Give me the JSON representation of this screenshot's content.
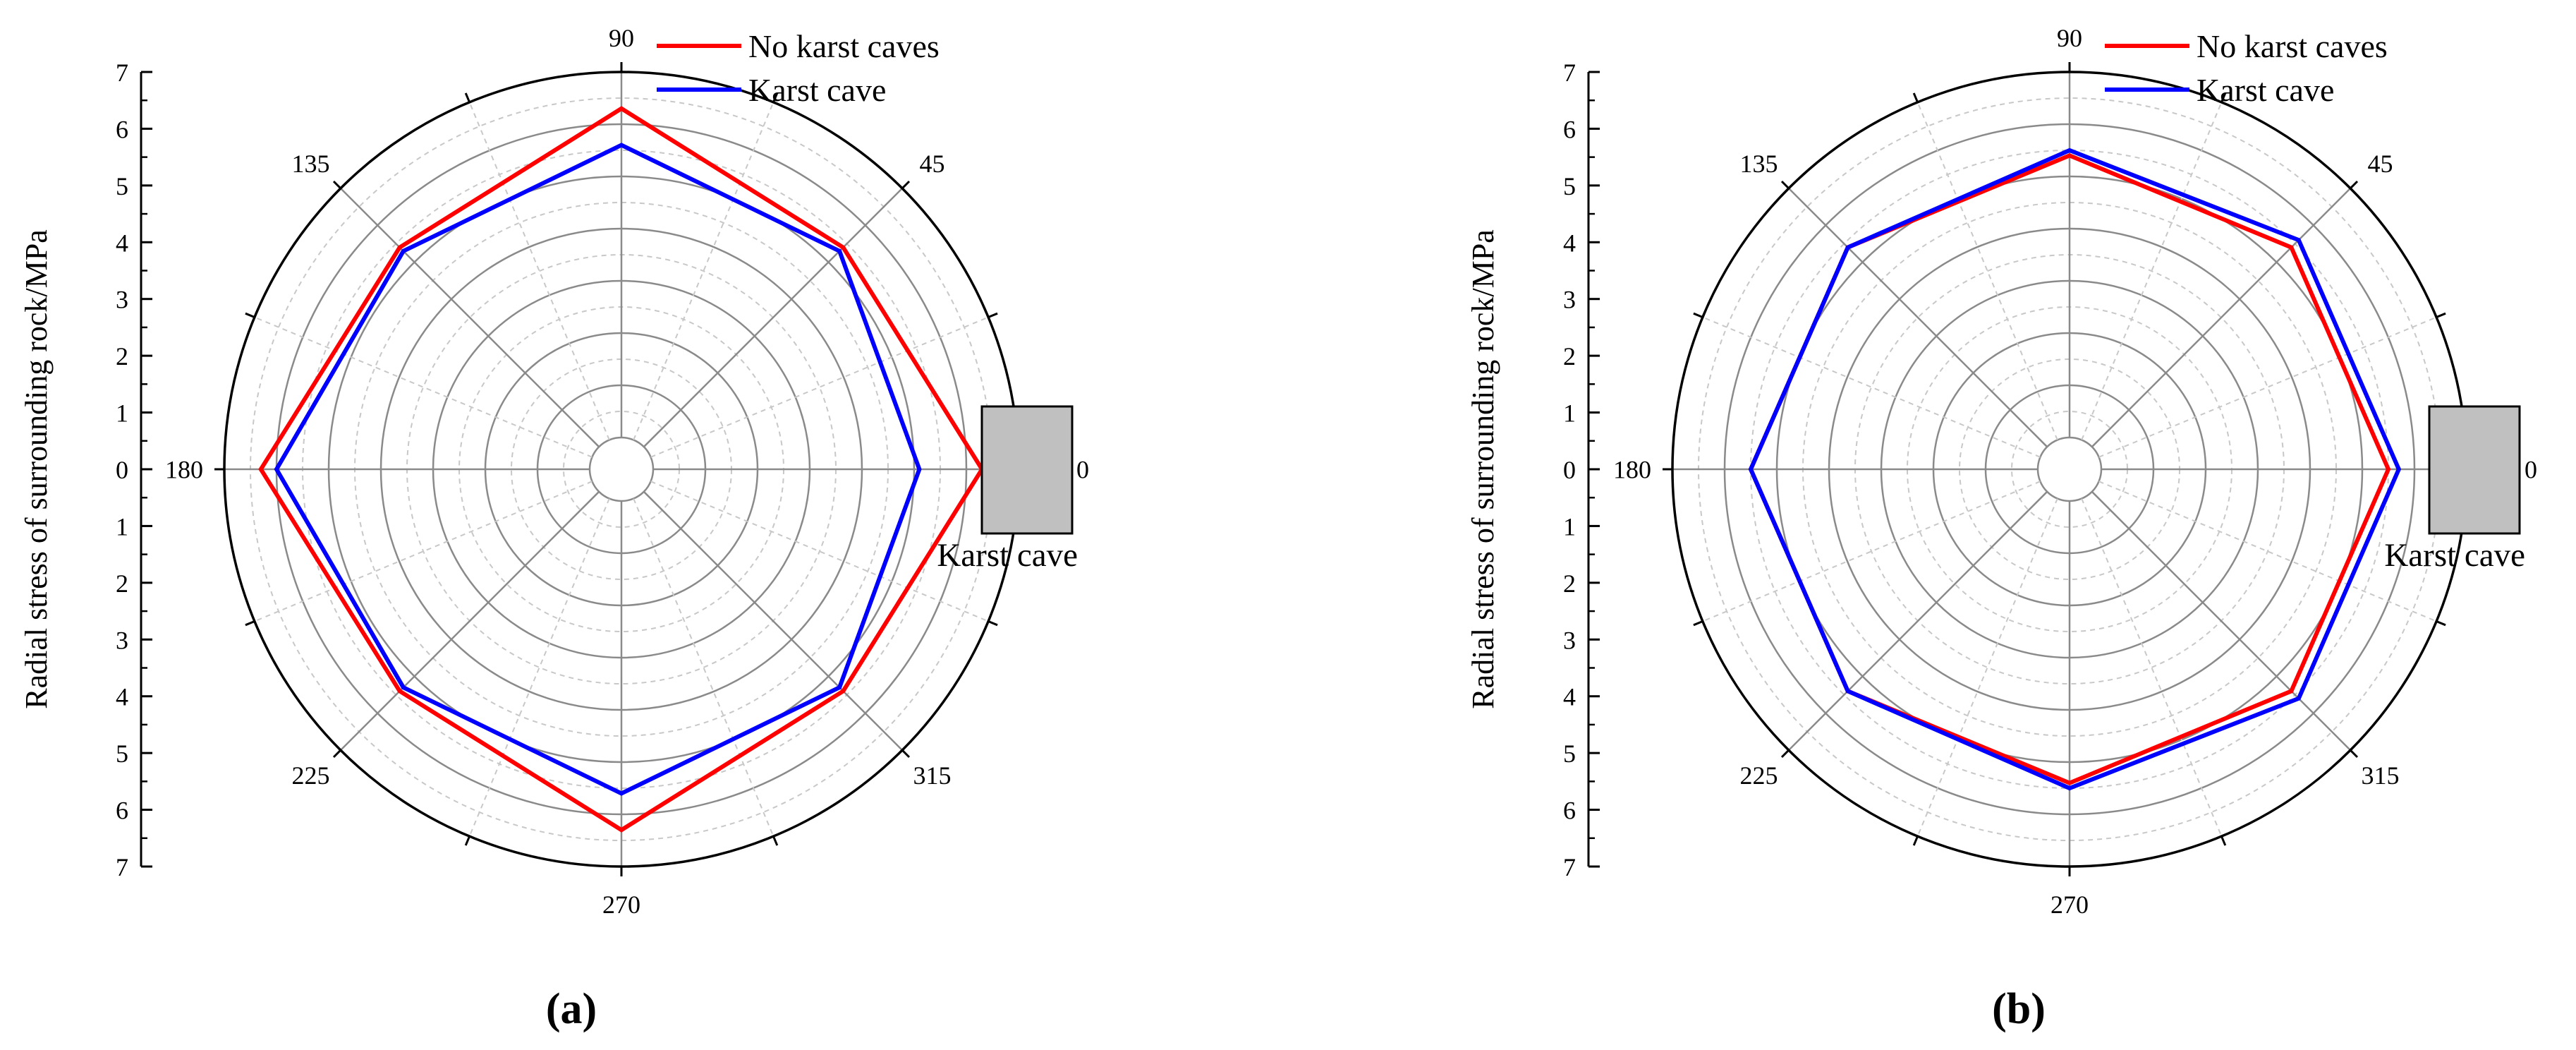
{
  "figure": {
    "panel_labels": [
      "(a)",
      "(b)"
    ]
  },
  "colors": {
    "no_karst": "#ff0000",
    "karst": "#0000ff",
    "grid_major": "#8a8a8a",
    "grid_minor": "#c8c8c8",
    "cave_fill": "#c0c0c0"
  },
  "chart_data": [
    {
      "type": "radar",
      "panel": "(a)",
      "ylabel": "Radial stress of surrounding rock/MPa",
      "angular_ticks": [
        "0",
        "45",
        "90",
        "135",
        "180",
        "225",
        "270",
        "315"
      ],
      "angles_deg": [
        0,
        45,
        90,
        135,
        180,
        225,
        270,
        315
      ],
      "radial_ticks": [
        "7",
        "6",
        "5",
        "4",
        "3",
        "2",
        "1",
        "0",
        "1",
        "2",
        "3",
        "4",
        "5",
        "6",
        "7"
      ],
      "rlim": [
        0,
        7
      ],
      "cave_label": "Karst cave",
      "series": [
        {
          "name": "No karst caves",
          "values": [
            6.3,
            5.4,
            6.3,
            5.4,
            6.3,
            5.4,
            6.3,
            5.4
          ]
        },
        {
          "name": "Karst cave",
          "values": [
            5.1,
            5.3,
            5.6,
            5.3,
            6.0,
            5.3,
            5.6,
            5.3
          ]
        }
      ]
    },
    {
      "type": "radar",
      "panel": "(b)",
      "ylabel": "Radial stress of surrounding rock/MPa",
      "angular_ticks": [
        "0",
        "45",
        "90",
        "135",
        "180",
        "225",
        "270",
        "315"
      ],
      "angles_deg": [
        0,
        45,
        90,
        135,
        180,
        225,
        270,
        315
      ],
      "radial_ticks": [
        "7",
        "6",
        "5",
        "4",
        "3",
        "2",
        "1",
        "0",
        "1",
        "2",
        "3",
        "4",
        "5",
        "6",
        "7"
      ],
      "rlim": [
        0,
        7
      ],
      "cave_label": "Karst cave",
      "series": [
        {
          "name": "No karst caves",
          "values": [
            5.5,
            5.4,
            5.4,
            5.4,
            5.5,
            5.4,
            5.4,
            5.4
          ]
        },
        {
          "name": "Karst cave",
          "values": [
            5.7,
            5.6,
            5.5,
            5.4,
            5.5,
            5.4,
            5.5,
            5.6
          ]
        }
      ]
    }
  ]
}
